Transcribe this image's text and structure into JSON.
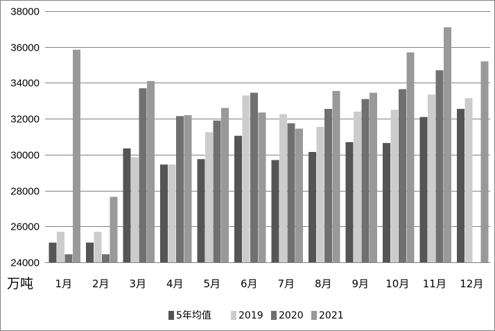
{
  "chart_data": {
    "type": "bar",
    "unit_label": "万吨",
    "categories": [
      "1月",
      "2月",
      "3月",
      "4月",
      "5月",
      "6月",
      "7月",
      "8月",
      "9月",
      "10月",
      "11月",
      "12月"
    ],
    "series": [
      {
        "name": "5年均值",
        "color": "#555555",
        "values": [
          25100,
          25100,
          30350,
          29450,
          29750,
          31050,
          29700,
          30150,
          30700,
          30650,
          32100,
          32550
        ]
      },
      {
        "name": "2019",
        "color": "#cccccc",
        "values": [
          25700,
          25700,
          29850,
          29450,
          31250,
          33300,
          32250,
          31550,
          32400,
          32500,
          33350,
          33150
        ]
      },
      {
        "name": "2020",
        "color": "#707070",
        "values": [
          24450,
          24450,
          33700,
          32150,
          31900,
          33450,
          31750,
          32550,
          33100,
          33650,
          34700,
          null
        ]
      },
      {
        "name": "2021",
        "color": "#999999",
        "values": [
          35850,
          27650,
          34100,
          32200,
          32600,
          32350,
          31450,
          33550,
          33450,
          35700,
          37100,
          35200
        ]
      }
    ],
    "ylim": [
      24000,
      38000
    ],
    "yticks": [
      24000,
      26000,
      28000,
      30000,
      32000,
      34000,
      36000,
      38000
    ],
    "grid": true,
    "legend": "bottom"
  }
}
